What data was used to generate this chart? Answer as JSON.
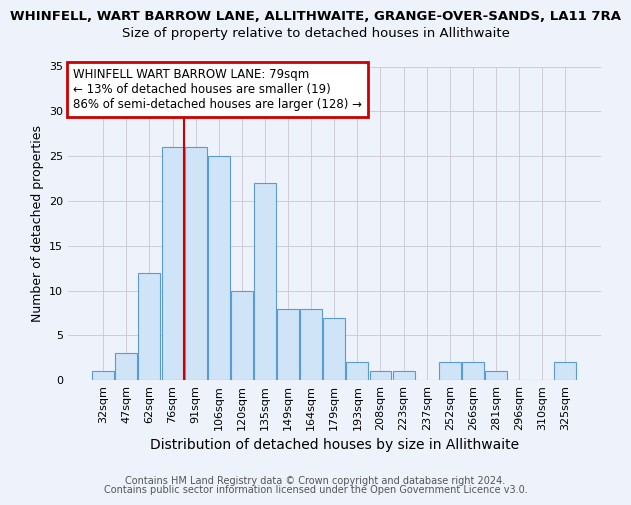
{
  "title1": "WHINFELL, WART BARROW LANE, ALLITHWAITE, GRANGE-OVER-SANDS, LA11 7RA",
  "title2": "Size of property relative to detached houses in Allithwaite",
  "xlabel": "Distribution of detached houses by size in Allithwaite",
  "ylabel": "Number of detached properties",
  "categories": [
    "32sqm",
    "47sqm",
    "62sqm",
    "76sqm",
    "91sqm",
    "106sqm",
    "120sqm",
    "135sqm",
    "149sqm",
    "164sqm",
    "179sqm",
    "193sqm",
    "208sqm",
    "223sqm",
    "237sqm",
    "252sqm",
    "266sqm",
    "281sqm",
    "296sqm",
    "310sqm",
    "325sqm"
  ],
  "values": [
    1,
    3,
    12,
    26,
    26,
    25,
    10,
    22,
    8,
    8,
    7,
    2,
    1,
    1,
    0,
    2,
    2,
    1,
    0,
    0,
    2
  ],
  "bar_color": "#d0e4f7",
  "bar_edge_color": "#5b9bd5",
  "vline_x": 3.5,
  "vline_color": "#cc0000",
  "annotation_title": "WHINFELL WART BARROW LANE: 79sqm",
  "annotation_line1": "← 13% of detached houses are smaller (19)",
  "annotation_line2": "86% of semi-detached houses are larger (128) →",
  "annotation_box_color": "#ffffff",
  "annotation_box_edge": "#cc0000",
  "ylim": [
    0,
    35
  ],
  "yticks": [
    0,
    5,
    10,
    15,
    20,
    25,
    30,
    35
  ],
  "footer1": "Contains HM Land Registry data © Crown copyright and database right 2024.",
  "footer2": "Contains public sector information licensed under the Open Government Licence v3.0.",
  "background_color": "#eef2fb",
  "title1_fontsize": 9.5,
  "title2_fontsize": 9.5,
  "xlabel_fontsize": 10,
  "ylabel_fontsize": 9,
  "tick_fontsize": 8,
  "ann_fontsize": 8.5,
  "footer_fontsize": 7
}
